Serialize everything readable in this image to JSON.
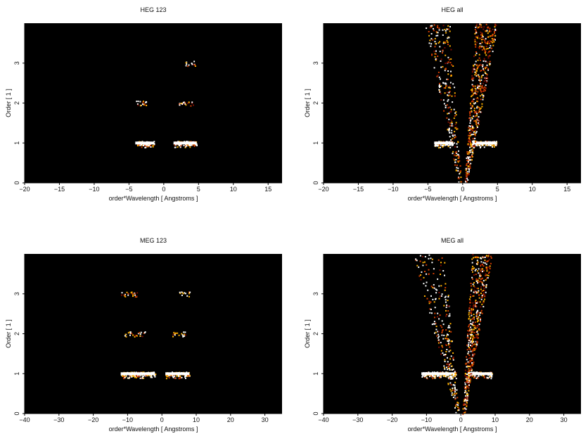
{
  "figure": {
    "background": "#ffffff",
    "plot_background": "#000000"
  },
  "chart_data": [
    {
      "type": "heatmap",
      "title": "HEG 123",
      "xlabel": "order*Wavelength [ Angstroms ]",
      "ylabel": "Order [ 1 ]",
      "xlim": [
        -20,
        17
      ],
      "ylim": [
        0,
        4
      ],
      "xticks": [
        -20,
        -15,
        -10,
        -5,
        0,
        5,
        10,
        15
      ],
      "yticks": [
        0,
        1,
        2,
        3
      ],
      "colormap": [
        "#000000",
        "#7a0a00",
        "#d23c00",
        "#ffb000",
        "#ffffff"
      ],
      "grid": false,
      "features": [
        {
          "x_range": [
            -4.1,
            -1.4
          ],
          "order": 1,
          "intensity": "high"
        },
        {
          "x_range": [
            1.4,
            4.7
          ],
          "order": 1,
          "intensity": "high"
        },
        {
          "x_range": [
            -4.0,
            -2.1
          ],
          "order": 2,
          "intensity": "low"
        },
        {
          "x_range": [
            2.1,
            4.3
          ],
          "order": 2,
          "intensity": "low"
        },
        {
          "x_range": [
            3.0,
            4.5
          ],
          "order": 3,
          "intensity": "low"
        }
      ]
    },
    {
      "type": "heatmap",
      "title": "HEG all",
      "xlabel": "order*Wavelength [ Angstroms ]",
      "ylabel": "Order [ 1 ]",
      "xlim": [
        -20,
        17
      ],
      "ylim": [
        0,
        4
      ],
      "xticks": [
        -20,
        -15,
        -10,
        -5,
        0,
        5,
        10,
        15
      ],
      "yticks": [
        0,
        1,
        2,
        3
      ],
      "colormap": [
        "#000000",
        "#7a0a00",
        "#d23c00",
        "#ffb000",
        "#ffffff"
      ],
      "grid": false,
      "features": [
        {
          "x_range": [
            -4.1,
            -1.4
          ],
          "order": 1,
          "intensity": "high"
        },
        {
          "x_range": [
            1.4,
            4.8
          ],
          "order": 1,
          "intensity": "high"
        },
        {
          "x_range": [
            -5.5,
            0
          ],
          "order_range": [
            0,
            4
          ],
          "intensity": "low",
          "shape": "left-wedge"
        },
        {
          "x_range": [
            0,
            5.0
          ],
          "order_range": [
            0,
            4
          ],
          "intensity": "medium",
          "shape": "right-wedge"
        }
      ]
    },
    {
      "type": "heatmap",
      "title": "MEG 123",
      "xlabel": "order*Wavelength [ Angstroms ]",
      "ylabel": "Order [ 1 ]",
      "xlim": [
        -40,
        35
      ],
      "ylim": [
        0,
        4
      ],
      "xticks": [
        -40,
        -30,
        -20,
        -10,
        0,
        10,
        20,
        30
      ],
      "yticks": [
        0,
        1,
        2,
        3
      ],
      "colormap": [
        "#000000",
        "#7a0a00",
        "#d23c00",
        "#ffb000",
        "#ffffff"
      ],
      "grid": false,
      "features": [
        {
          "x_range": [
            -12.0,
            -2.0
          ],
          "order": 1,
          "intensity": "high"
        },
        {
          "x_range": [
            1.0,
            8.0
          ],
          "order": 1,
          "intensity": "high"
        },
        {
          "x_range": [
            -11.0,
            -5.0
          ],
          "order": 2,
          "intensity": "low"
        },
        {
          "x_range": [
            3.0,
            7.0
          ],
          "order": 2,
          "intensity": "low"
        },
        {
          "x_range": [
            -12.0,
            -7.0
          ],
          "order": 3,
          "intensity": "low"
        },
        {
          "x_range": [
            5.0,
            8.0
          ],
          "order": 3,
          "intensity": "low"
        }
      ]
    },
    {
      "type": "heatmap",
      "title": "MEG all",
      "xlabel": "order*Wavelength [ Angstroms ]",
      "ylabel": "Order [ 1 ]",
      "xlim": [
        -40,
        35
      ],
      "ylim": [
        0,
        4
      ],
      "xticks": [
        -40,
        -30,
        -20,
        -10,
        0,
        10,
        20,
        30
      ],
      "yticks": [
        0,
        1,
        2,
        3
      ],
      "colormap": [
        "#000000",
        "#7a0a00",
        "#d23c00",
        "#ffb000",
        "#ffffff"
      ],
      "grid": false,
      "features": [
        {
          "x_range": [
            -11.5,
            -1.5
          ],
          "order": 1,
          "intensity": "high"
        },
        {
          "x_range": [
            2.0,
            9.0
          ],
          "order": 1,
          "intensity": "high"
        },
        {
          "x_range": [
            -14.0,
            0
          ],
          "order_range": [
            0,
            4
          ],
          "intensity": "low",
          "shape": "left-wedge"
        },
        {
          "x_range": [
            0,
            9.0
          ],
          "order_range": [
            0,
            4
          ],
          "intensity": "medium",
          "shape": "right-wedge"
        }
      ]
    }
  ]
}
